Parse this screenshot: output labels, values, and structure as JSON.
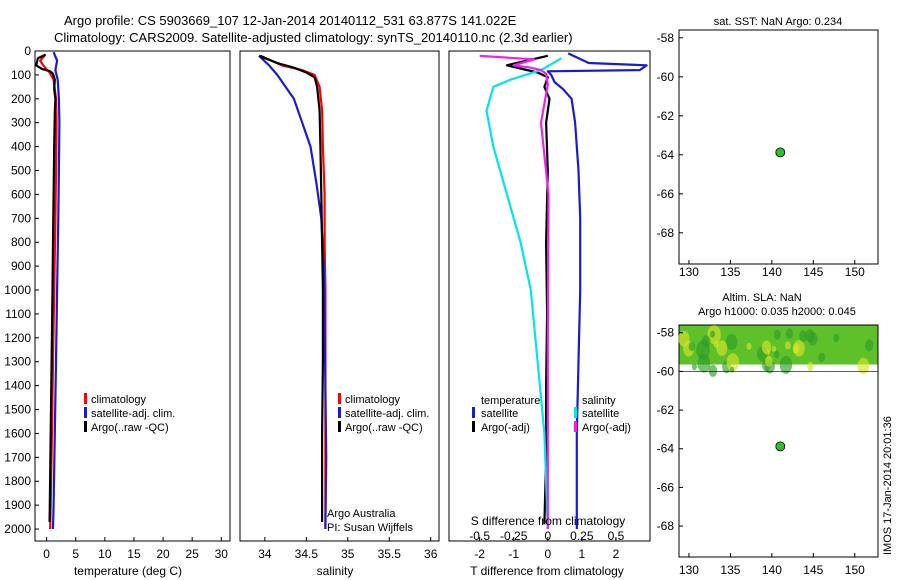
{
  "header": {
    "line1": "Argo profile: CS 5903669_107 12-Jan-2014 20140112_531 63.877S 141.022E",
    "line2": "Climatology: CARS2009. Satellite-adjusted climatology: synTS_20140110.nc (2.3d earlier)"
  },
  "side_label": "IMOS 17-Jan-2014 20:01:36",
  "colors": {
    "climatology": "#ff0000",
    "satellite": "#1a1ad6",
    "argo": "#000000",
    "cyan": "#00e5ee",
    "magenta": "#ee22ee",
    "dot": "#22c522"
  },
  "chart_data": [
    {
      "type": "line",
      "name": "temperature",
      "xlabel": "temperature (deg C)",
      "xlim": [
        -2,
        31.5
      ],
      "xticks": [
        0,
        5,
        10,
        15,
        20,
        25,
        30
      ],
      "ylim": [
        0,
        2050
      ],
      "yticks": [
        0,
        100,
        200,
        300,
        400,
        500,
        600,
        700,
        800,
        900,
        1000,
        1100,
        1200,
        1300,
        1400,
        1500,
        1600,
        1700,
        1800,
        1900,
        2000
      ],
      "legend": [
        "climatology",
        "satellite-adj. clim.",
        "Argo(..raw -QC)"
      ],
      "series": [
        {
          "name": "climatology",
          "color": "red",
          "points": [
            [
              -0.2,
              15
            ],
            [
              -1.1,
              40
            ],
            [
              -0.6,
              60
            ],
            [
              0.5,
              90
            ],
            [
              1.2,
              120
            ],
            [
              1.6,
              200
            ],
            [
              1.7,
              300
            ],
            [
              1.6,
              500
            ],
            [
              1.5,
              700
            ],
            [
              1.3,
              1000
            ],
            [
              1.1,
              1300
            ],
            [
              0.9,
              1600
            ],
            [
              0.7,
              1900
            ],
            [
              0.6,
              2000
            ]
          ]
        },
        {
          "name": "satellite-adj. clim.",
          "color": "blue",
          "points": [
            [
              1.2,
              5
            ],
            [
              1.8,
              40
            ],
            [
              1.5,
              80
            ],
            [
              1.9,
              120
            ],
            [
              2.1,
              200
            ],
            [
              2.2,
              300
            ],
            [
              2.1,
              500
            ],
            [
              2.0,
              700
            ],
            [
              1.8,
              1000
            ],
            [
              1.6,
              1300
            ],
            [
              1.4,
              1600
            ],
            [
              1.2,
              1900
            ],
            [
              1.1,
              2000
            ]
          ]
        },
        {
          "name": "Argo",
          "color": "black",
          "points": [
            [
              -0.2,
              15
            ],
            [
              -1.5,
              30
            ],
            [
              -1.8,
              60
            ],
            [
              -0.8,
              75
            ],
            [
              0.6,
              85
            ],
            [
              1.1,
              95
            ],
            [
              1.4,
              120
            ],
            [
              1.3,
              160
            ],
            [
              1.5,
              200
            ],
            [
              1.4,
              260
            ],
            [
              1.3,
              400
            ],
            [
              1.2,
              600
            ],
            [
              1.1,
              800
            ],
            [
              1.0,
              1000
            ],
            [
              0.9,
              1200
            ],
            [
              0.8,
              1400
            ],
            [
              0.7,
              1600
            ],
            [
              0.6,
              1800
            ],
            [
              0.5,
              1970
            ]
          ]
        }
      ]
    },
    {
      "type": "line",
      "name": "salinity",
      "xlabel": "salinity",
      "xlim": [
        33.7,
        36.1
      ],
      "xticks": [
        34,
        34.5,
        35,
        35.5,
        36
      ],
      "xtick_labels": [
        "34",
        "34.5",
        "35",
        "35.5",
        "36"
      ],
      "ylim": [
        0,
        2050
      ],
      "legend": [
        "climatology",
        "satellite-adj. clim.",
        "Argo(..raw -QC)"
      ],
      "annotation": [
        "Argo Australia",
        "PI: Susan Wijffels"
      ],
      "series": [
        {
          "name": "climatology",
          "color": "red",
          "points": [
            [
              33.95,
              20
            ],
            [
              34.2,
              60
            ],
            [
              34.45,
              80
            ],
            [
              34.6,
              100
            ],
            [
              34.66,
              150
            ],
            [
              34.69,
              250
            ],
            [
              34.7,
              400
            ],
            [
              34.72,
              600
            ],
            [
              34.72,
              800
            ],
            [
              34.73,
              1000
            ],
            [
              34.73,
              1300
            ],
            [
              34.73,
              1600
            ],
            [
              34.73,
              2000
            ]
          ]
        },
        {
          "name": "satellite-adj. clim.",
          "color": "blue",
          "points": [
            [
              33.93,
              20
            ],
            [
              34.05,
              60
            ],
            [
              34.15,
              100
            ],
            [
              34.25,
              150
            ],
            [
              34.35,
              200
            ],
            [
              34.45,
              300
            ],
            [
              34.55,
              400
            ],
            [
              34.62,
              550
            ],
            [
              34.68,
              700
            ],
            [
              34.71,
              900
            ],
            [
              34.72,
              1100
            ],
            [
              34.73,
              1400
            ],
            [
              34.74,
              1700
            ],
            [
              34.73,
              2000
            ]
          ]
        },
        {
          "name": "Argo",
          "color": "black",
          "points": [
            [
              33.93,
              20
            ],
            [
              34.15,
              50
            ],
            [
              34.35,
              70
            ],
            [
              34.5,
              90
            ],
            [
              34.6,
              110
            ],
            [
              34.63,
              150
            ],
            [
              34.66,
              250
            ],
            [
              34.67,
              400
            ],
            [
              34.68,
              600
            ],
            [
              34.69,
              800
            ],
            [
              34.7,
              1000
            ],
            [
              34.7,
              1300
            ],
            [
              34.69,
              1600
            ],
            [
              34.69,
              1970
            ]
          ]
        }
      ]
    },
    {
      "type": "line",
      "name": "difference",
      "xlabel_top": "S difference from climatology",
      "xlabel": "T difference from climatology",
      "xlim": [
        -2.9,
        3.0
      ],
      "xticks": [
        -2,
        -1,
        0,
        1,
        2
      ],
      "xtick_labels": [
        "-2",
        "-1",
        "0",
        "1",
        "2"
      ],
      "s_ticks": [
        -0.5,
        -0.25,
        0,
        0.25,
        0.5
      ],
      "s_tick_labels": [
        "-0.5",
        "-0.25",
        "0",
        "0.25",
        "0.5"
      ],
      "ylim": [
        0,
        2050
      ],
      "legend": {
        "temperature": "temperature",
        "salinity": "salinity",
        "satellite": "satellite",
        "argo": "Argo(-adj)"
      },
      "series": [
        {
          "name": "T satellite",
          "color": "blue",
          "points": [
            [
              0.6,
              10
            ],
            [
              1.2,
              50
            ],
            [
              2.9,
              60
            ],
            [
              2.7,
              80
            ],
            [
              0.0,
              85
            ],
            [
              0.1,
              100
            ],
            [
              0.2,
              130
            ],
            [
              0.45,
              160
            ],
            [
              0.7,
              200
            ],
            [
              0.8,
              300
            ],
            [
              0.9,
              500
            ],
            [
              0.95,
              700
            ],
            [
              0.95,
              1000
            ],
            [
              0.9,
              1300
            ],
            [
              0.85,
              1600
            ],
            [
              0.85,
              2000
            ]
          ]
        },
        {
          "name": "T Argo",
          "color": "black",
          "points": [
            [
              0.0,
              20
            ],
            [
              -1.2,
              60
            ],
            [
              -0.3,
              90
            ],
            [
              0.0,
              110
            ],
            [
              -0.1,
              150
            ],
            [
              0.05,
              200
            ],
            [
              -0.05,
              300
            ],
            [
              0.0,
              500
            ],
            [
              -0.05,
              800
            ],
            [
              -0.02,
              1100
            ],
            [
              -0.05,
              1400
            ],
            [
              -0.05,
              1700
            ],
            [
              -0.1,
              1980
            ]
          ]
        },
        {
          "name": "S satellite",
          "color": "cyan",
          "points": [
            [
              0.4,
              30
            ],
            [
              -0.2,
              80
            ],
            [
              -1.1,
              120
            ],
            [
              -1.6,
              150
            ],
            [
              -1.8,
              250
            ],
            [
              -1.6,
              400
            ],
            [
              -1.2,
              600
            ],
            [
              -0.8,
              800
            ],
            [
              -0.5,
              1000
            ],
            [
              -0.3,
              1300
            ],
            [
              -0.1,
              1600
            ],
            [
              0.0,
              2000
            ]
          ]
        },
        {
          "name": "S Argo",
          "color": "magenta",
          "points": [
            [
              -2.0,
              20
            ],
            [
              -0.4,
              35
            ],
            [
              -1.0,
              60
            ],
            [
              -0.5,
              70
            ],
            [
              -0.2,
              80
            ],
            [
              -0.05,
              95
            ],
            [
              0.0,
              140
            ],
            [
              -0.2,
              300
            ],
            [
              0.02,
              600
            ],
            [
              0.0,
              1200
            ],
            [
              0.0,
              2000
            ]
          ]
        }
      ]
    },
    {
      "type": "scatter",
      "name": "sst-map",
      "title": "sat. SST: NaN Argo: 0.234",
      "xlim": [
        128.8,
        152.8
      ],
      "xticks": [
        130,
        135,
        140,
        145,
        150
      ],
      "ylim": [
        -69.6,
        -57.6
      ],
      "yticks": [
        -58,
        -60,
        -62,
        -64,
        -66,
        -68
      ],
      "points": [
        [
          141.022,
          -63.877
        ]
      ]
    },
    {
      "type": "heatmap",
      "name": "sla-map",
      "title": [
        "Altim. SLA: NaN",
        "Argo h1000: 0.035 h2000: 0.045"
      ],
      "xlim": [
        128.8,
        152.8
      ],
      "xticks": [
        130,
        135,
        140,
        145,
        150
      ],
      "ylim": [
        -69.6,
        -57.6
      ],
      "yticks": [
        -58,
        -60,
        -62,
        -64,
        -66,
        -68
      ],
      "band_lat": [
        -58,
        -60
      ],
      "points": [
        [
          141.022,
          -63.877
        ]
      ]
    }
  ]
}
